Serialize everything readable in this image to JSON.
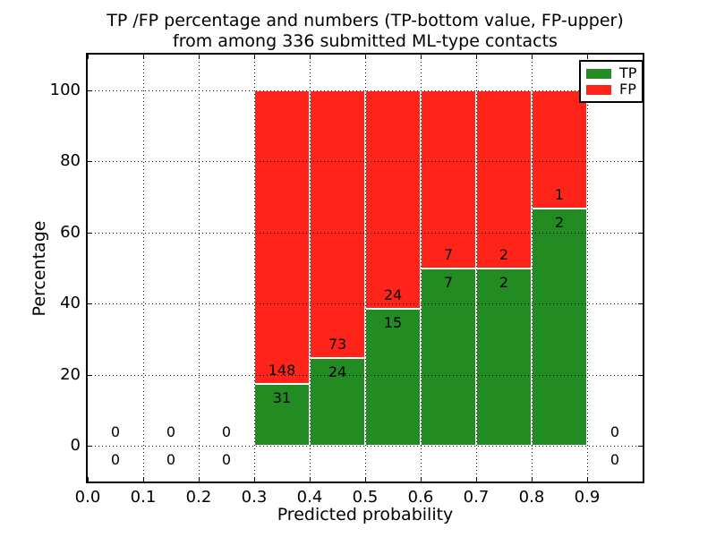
{
  "chart_data": {
    "type": "bar",
    "stacked": true,
    "normalized": "each bar scaled to 100 percent; labels show raw counts",
    "title_lines": [
      "TP /FP percentage and numbers (TP-bottom value, FP-upper)",
      "from among 336 submitted ML-type contacts"
    ],
    "xlabel": "Predicted probability",
    "ylabel": "Percentage",
    "xlim": [
      0.0,
      1.0
    ],
    "ylim": [
      -10,
      110
    ],
    "bin_width": 0.1,
    "categories": [
      0.0,
      0.1,
      0.2,
      0.3,
      0.4,
      0.5,
      0.6,
      0.7,
      0.8,
      0.9
    ],
    "series": [
      {
        "name": "TP",
        "color": "#228b22",
        "values": [
          0,
          0,
          0,
          31,
          24,
          15,
          7,
          2,
          2,
          0
        ]
      },
      {
        "name": "FP",
        "color": "#ff2419",
        "values": [
          0,
          0,
          0,
          148,
          73,
          24,
          7,
          2,
          1,
          0
        ]
      }
    ],
    "total_contacts": 336,
    "xtick_labels": [
      "0.0",
      "0.1",
      "0.2",
      "0.3",
      "0.4",
      "0.5",
      "0.6",
      "0.7",
      "0.8",
      "0.9"
    ],
    "ytick_values": [
      0,
      20,
      40,
      60,
      80,
      100
    ],
    "ytick_labels": [
      "0",
      "20",
      "40",
      "60",
      "80",
      "100"
    ],
    "grid": "dotted, drawn above bars",
    "legend": {
      "position": "upper right",
      "entries": [
        {
          "label": "TP",
          "color": "#228b22"
        },
        {
          "label": "FP",
          "color": "#ff2419"
        }
      ]
    },
    "colors": {
      "tp_green": "#228b22",
      "fp_red": "#ff2419",
      "axis": "#000000",
      "background": "#ffffff",
      "bar_edge": "#ffffff"
    }
  }
}
